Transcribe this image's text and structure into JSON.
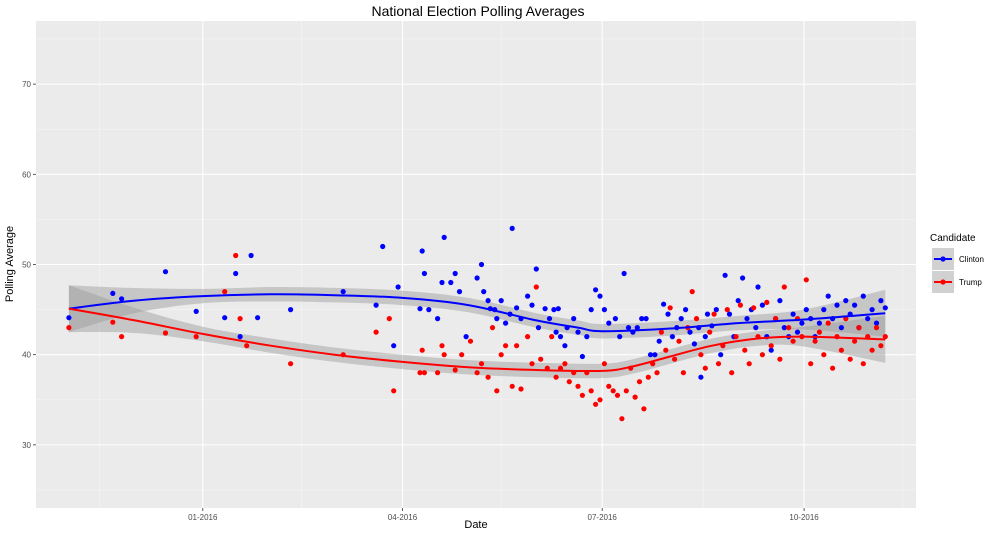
{
  "chart_data": {
    "type": "scatter",
    "title": "National Election Polling Averages",
    "xlabel": "Date",
    "ylabel": "Polling Average",
    "x_ticks": [
      "01-2016",
      "04-2016",
      "07-2016",
      "10-2016"
    ],
    "y_ticks": [
      "30",
      "40",
      "50",
      "60",
      "70"
    ],
    "xlim": [
      "2015-10-17",
      "2016-11-21"
    ],
    "ylim": [
      23,
      77
    ],
    "grid": true,
    "legend": {
      "title": "Candidate",
      "position": "right"
    },
    "series": [
      {
        "name": "Clinton",
        "color": "#0000FF",
        "points": [
          [
            "2015-11-01",
            44.1
          ],
          [
            "2015-11-21",
            46.8
          ],
          [
            "2015-11-25",
            46.2
          ],
          [
            "2015-12-15",
            49.2
          ],
          [
            "2015-12-29",
            44.8
          ],
          [
            "2016-01-11",
            44.1
          ],
          [
            "2016-01-16",
            49.0
          ],
          [
            "2016-01-18",
            42.0
          ],
          [
            "2016-01-23",
            51.0
          ],
          [
            "2016-01-26",
            44.1
          ],
          [
            "2016-02-10",
            45.0
          ],
          [
            "2016-03-05",
            47.0
          ],
          [
            "2016-03-20",
            45.5
          ],
          [
            "2016-03-23",
            52.0
          ],
          [
            "2016-03-28",
            41.0
          ],
          [
            "2016-03-30",
            47.5
          ],
          [
            "2016-04-09",
            45.1
          ],
          [
            "2016-04-10",
            51.5
          ],
          [
            "2016-04-11",
            49.0
          ],
          [
            "2016-04-13",
            45.0
          ],
          [
            "2016-04-17",
            44.0
          ],
          [
            "2016-04-19",
            48.0
          ],
          [
            "2016-04-20",
            53.0
          ],
          [
            "2016-04-23",
            48.0
          ],
          [
            "2016-04-25",
            49.0
          ],
          [
            "2016-04-27",
            47.0
          ],
          [
            "2016-04-30",
            42.0
          ],
          [
            "2016-05-05",
            48.5
          ],
          [
            "2016-05-07",
            50.0
          ],
          [
            "2016-05-08",
            47.0
          ],
          [
            "2016-05-10",
            46.0
          ],
          [
            "2016-05-11",
            45.1
          ],
          [
            "2016-05-13",
            45.0
          ],
          [
            "2016-05-14",
            44.0
          ],
          [
            "2016-05-16",
            46.0
          ],
          [
            "2016-05-18",
            43.5
          ],
          [
            "2016-05-20",
            44.5
          ],
          [
            "2016-05-21",
            54.0
          ],
          [
            "2016-05-23",
            45.2
          ],
          [
            "2016-05-25",
            44.0
          ],
          [
            "2016-05-28",
            46.5
          ],
          [
            "2016-05-30",
            45.5
          ],
          [
            "2016-06-01",
            49.5
          ],
          [
            "2016-06-02",
            43.0
          ],
          [
            "2016-06-05",
            45.1
          ],
          [
            "2016-06-07",
            44.0
          ],
          [
            "2016-06-09",
            45.0
          ],
          [
            "2016-06-10",
            42.5
          ],
          [
            "2016-06-11",
            45.1
          ],
          [
            "2016-06-12",
            42.0
          ],
          [
            "2016-06-14",
            41.0
          ],
          [
            "2016-06-15",
            43.0
          ],
          [
            "2016-06-18",
            44.0
          ],
          [
            "2016-06-20",
            42.5
          ],
          [
            "2016-06-22",
            39.8
          ],
          [
            "2016-06-24",
            42.0
          ],
          [
            "2016-06-26",
            45.0
          ],
          [
            "2016-06-28",
            47.2
          ],
          [
            "2016-06-30",
            46.5
          ],
          [
            "2016-07-02",
            45.0
          ],
          [
            "2016-07-04",
            43.5
          ],
          [
            "2016-07-07",
            44.0
          ],
          [
            "2016-07-09",
            42.0
          ],
          [
            "2016-07-11",
            49.0
          ],
          [
            "2016-07-13",
            43.0
          ],
          [
            "2016-07-15",
            42.5
          ],
          [
            "2016-07-17",
            43.0
          ],
          [
            "2016-07-19",
            44.0
          ],
          [
            "2016-07-21",
            44.0
          ],
          [
            "2016-07-23",
            40.0
          ],
          [
            "2016-07-25",
            40.0
          ],
          [
            "2016-07-27",
            41.5
          ],
          [
            "2016-07-29",
            45.6
          ],
          [
            "2016-07-31",
            44.5
          ],
          [
            "2016-08-02",
            42.0
          ],
          [
            "2016-08-04",
            43.0
          ],
          [
            "2016-08-06",
            44.0
          ],
          [
            "2016-08-08",
            45.0
          ],
          [
            "2016-08-10",
            42.5
          ],
          [
            "2016-08-12",
            41.2
          ],
          [
            "2016-08-14",
            43.0
          ],
          [
            "2016-08-15",
            37.5
          ],
          [
            "2016-08-17",
            42.0
          ],
          [
            "2016-08-18",
            44.5
          ],
          [
            "2016-08-20",
            43.2
          ],
          [
            "2016-08-22",
            45.0
          ],
          [
            "2016-08-24",
            40.0
          ],
          [
            "2016-08-26",
            48.8
          ],
          [
            "2016-08-28",
            44.5
          ],
          [
            "2016-08-30",
            42.0
          ],
          [
            "2016-09-01",
            46.0
          ],
          [
            "2016-09-03",
            48.5
          ],
          [
            "2016-09-05",
            44.0
          ],
          [
            "2016-09-07",
            45.0
          ],
          [
            "2016-09-09",
            43.0
          ],
          [
            "2016-09-10",
            47.5
          ],
          [
            "2016-09-12",
            45.5
          ],
          [
            "2016-09-14",
            42.0
          ],
          [
            "2016-09-16",
            40.5
          ],
          [
            "2016-09-18",
            44.0
          ],
          [
            "2016-09-20",
            46.0
          ],
          [
            "2016-09-22",
            43.0
          ],
          [
            "2016-09-24",
            42.0
          ],
          [
            "2016-09-26",
            44.5
          ],
          [
            "2016-09-28",
            42.5
          ],
          [
            "2016-09-30",
            43.5
          ],
          [
            "2016-10-02",
            45.0
          ],
          [
            "2016-10-04",
            44.0
          ],
          [
            "2016-10-06",
            42.0
          ],
          [
            "2016-10-08",
            43.5
          ],
          [
            "2016-10-10",
            45.0
          ],
          [
            "2016-10-12",
            46.5
          ],
          [
            "2016-10-14",
            44.0
          ],
          [
            "2016-10-16",
            45.5
          ],
          [
            "2016-10-18",
            43.0
          ],
          [
            "2016-10-20",
            46.0
          ],
          [
            "2016-10-22",
            44.5
          ],
          [
            "2016-10-24",
            45.5
          ],
          [
            "2016-10-26",
            43.0
          ],
          [
            "2016-10-28",
            46.5
          ],
          [
            "2016-10-30",
            44.0
          ],
          [
            "2016-11-01",
            45.0
          ],
          [
            "2016-11-03",
            43.5
          ],
          [
            "2016-11-05",
            46.0
          ],
          [
            "2016-11-07",
            45.2
          ]
        ],
        "trend": [
          [
            "2015-11-01",
            45.1
          ],
          [
            "2015-12-01",
            46.0
          ],
          [
            "2016-01-01",
            46.5
          ],
          [
            "2016-02-01",
            46.7
          ],
          [
            "2016-03-01",
            46.6
          ],
          [
            "2016-04-01",
            46.3
          ],
          [
            "2016-05-01",
            45.5
          ],
          [
            "2016-06-01",
            43.8
          ],
          [
            "2016-06-20",
            43.0
          ],
          [
            "2016-07-01",
            42.6
          ],
          [
            "2016-08-01",
            42.9
          ],
          [
            "2016-09-01",
            43.5
          ],
          [
            "2016-10-01",
            43.9
          ],
          [
            "2016-11-07",
            44.6
          ]
        ]
      },
      {
        "name": "Trump",
        "color": "#FF0000",
        "points": [
          [
            "2015-11-01",
            43.0
          ],
          [
            "2015-11-21",
            43.6
          ],
          [
            "2015-11-25",
            42.0
          ],
          [
            "2015-12-15",
            42.4
          ],
          [
            "2015-12-29",
            42.0
          ],
          [
            "2016-01-11",
            47.0
          ],
          [
            "2016-01-16",
            51.0
          ],
          [
            "2016-01-18",
            44.0
          ],
          [
            "2016-01-21",
            41.0
          ],
          [
            "2016-02-10",
            39.0
          ],
          [
            "2016-03-05",
            40.0
          ],
          [
            "2016-03-20",
            42.5
          ],
          [
            "2016-03-26",
            44.0
          ],
          [
            "2016-03-28",
            36.0
          ],
          [
            "2016-04-09",
            38.0
          ],
          [
            "2016-04-10",
            40.5
          ],
          [
            "2016-04-11",
            38.0
          ],
          [
            "2016-04-17",
            38.0
          ],
          [
            "2016-04-19",
            41.0
          ],
          [
            "2016-04-20",
            40.0
          ],
          [
            "2016-04-25",
            38.3
          ],
          [
            "2016-04-28",
            40.0
          ],
          [
            "2016-05-02",
            41.5
          ],
          [
            "2016-05-05",
            38.0
          ],
          [
            "2016-05-07",
            39.0
          ],
          [
            "2016-05-10",
            37.5
          ],
          [
            "2016-05-12",
            43.0
          ],
          [
            "2016-05-14",
            36.0
          ],
          [
            "2016-05-16",
            40.0
          ],
          [
            "2016-05-18",
            41.0
          ],
          [
            "2016-05-21",
            36.5
          ],
          [
            "2016-05-23",
            41.0
          ],
          [
            "2016-05-25",
            36.2
          ],
          [
            "2016-05-28",
            42.0
          ],
          [
            "2016-05-30",
            39.0
          ],
          [
            "2016-06-01",
            47.5
          ],
          [
            "2016-06-03",
            39.5
          ],
          [
            "2016-06-06",
            38.5
          ],
          [
            "2016-06-08",
            42.0
          ],
          [
            "2016-06-10",
            37.5
          ],
          [
            "2016-06-12",
            38.5
          ],
          [
            "2016-06-14",
            39.0
          ],
          [
            "2016-06-16",
            37.0
          ],
          [
            "2016-06-18",
            38.0
          ],
          [
            "2016-06-20",
            36.5
          ],
          [
            "2016-06-22",
            35.5
          ],
          [
            "2016-06-24",
            38.0
          ],
          [
            "2016-06-26",
            36.0
          ],
          [
            "2016-06-28",
            34.5
          ],
          [
            "2016-06-30",
            35.0
          ],
          [
            "2016-07-02",
            39.0
          ],
          [
            "2016-07-04",
            36.5
          ],
          [
            "2016-07-06",
            36.0
          ],
          [
            "2016-07-08",
            35.5
          ],
          [
            "2016-07-10",
            32.9
          ],
          [
            "2016-07-12",
            36.0
          ],
          [
            "2016-07-14",
            38.5
          ],
          [
            "2016-07-16",
            35.3
          ],
          [
            "2016-07-18",
            37.0
          ],
          [
            "2016-07-20",
            34.0
          ],
          [
            "2016-07-22",
            37.5
          ],
          [
            "2016-07-24",
            39.0
          ],
          [
            "2016-07-26",
            38.0
          ],
          [
            "2016-07-28",
            42.5
          ],
          [
            "2016-07-30",
            40.5
          ],
          [
            "2016-08-01",
            45.2
          ],
          [
            "2016-08-03",
            39.5
          ],
          [
            "2016-08-05",
            41.5
          ],
          [
            "2016-08-07",
            38.0
          ],
          [
            "2016-08-09",
            43.0
          ],
          [
            "2016-08-11",
            47.0
          ],
          [
            "2016-08-13",
            44.0
          ],
          [
            "2016-08-15",
            40.0
          ],
          [
            "2016-08-17",
            38.5
          ],
          [
            "2016-08-19",
            42.5
          ],
          [
            "2016-08-21",
            44.5
          ],
          [
            "2016-08-23",
            39.0
          ],
          [
            "2016-08-25",
            41.0
          ],
          [
            "2016-08-27",
            45.0
          ],
          [
            "2016-08-29",
            38.0
          ],
          [
            "2016-08-31",
            42.0
          ],
          [
            "2016-09-02",
            45.5
          ],
          [
            "2016-09-04",
            40.5
          ],
          [
            "2016-09-06",
            39.0
          ],
          [
            "2016-09-08",
            45.2
          ],
          [
            "2016-09-10",
            42.0
          ],
          [
            "2016-09-12",
            40.0
          ],
          [
            "2016-09-14",
            45.8
          ],
          [
            "2016-09-16",
            41.0
          ],
          [
            "2016-09-18",
            44.0
          ],
          [
            "2016-09-20",
            39.5
          ],
          [
            "2016-09-22",
            47.5
          ],
          [
            "2016-09-24",
            43.0
          ],
          [
            "2016-09-26",
            41.5
          ],
          [
            "2016-09-28",
            44.0
          ],
          [
            "2016-09-30",
            42.0
          ],
          [
            "2016-10-02",
            48.3
          ],
          [
            "2016-10-04",
            39.0
          ],
          [
            "2016-10-06",
            41.5
          ],
          [
            "2016-10-08",
            42.5
          ],
          [
            "2016-10-10",
            40.0
          ],
          [
            "2016-10-12",
            43.5
          ],
          [
            "2016-10-14",
            38.5
          ],
          [
            "2016-10-16",
            42.0
          ],
          [
            "2016-10-18",
            40.5
          ],
          [
            "2016-10-20",
            44.0
          ],
          [
            "2016-10-22",
            39.5
          ],
          [
            "2016-10-24",
            41.5
          ],
          [
            "2016-10-26",
            43.0
          ],
          [
            "2016-10-28",
            39.0
          ],
          [
            "2016-10-30",
            42.0
          ],
          [
            "2016-11-01",
            40.5
          ],
          [
            "2016-11-03",
            43.0
          ],
          [
            "2016-11-05",
            41.0
          ],
          [
            "2016-11-07",
            42.0
          ]
        ],
        "trend": [
          [
            "2015-11-01",
            45.1
          ],
          [
            "2015-12-01",
            43.8
          ],
          [
            "2016-01-01",
            42.3
          ],
          [
            "2016-02-01",
            41.0
          ],
          [
            "2016-03-01",
            40.0
          ],
          [
            "2016-04-01",
            39.2
          ],
          [
            "2016-05-01",
            38.6
          ],
          [
            "2016-06-01",
            38.3
          ],
          [
            "2016-07-01",
            38.2
          ],
          [
            "2016-07-15",
            38.7
          ],
          [
            "2016-08-01",
            39.8
          ],
          [
            "2016-08-20",
            41.0
          ],
          [
            "2016-09-10",
            41.8
          ],
          [
            "2016-10-01",
            42.0
          ],
          [
            "2016-11-07",
            41.7
          ]
        ]
      }
    ]
  }
}
